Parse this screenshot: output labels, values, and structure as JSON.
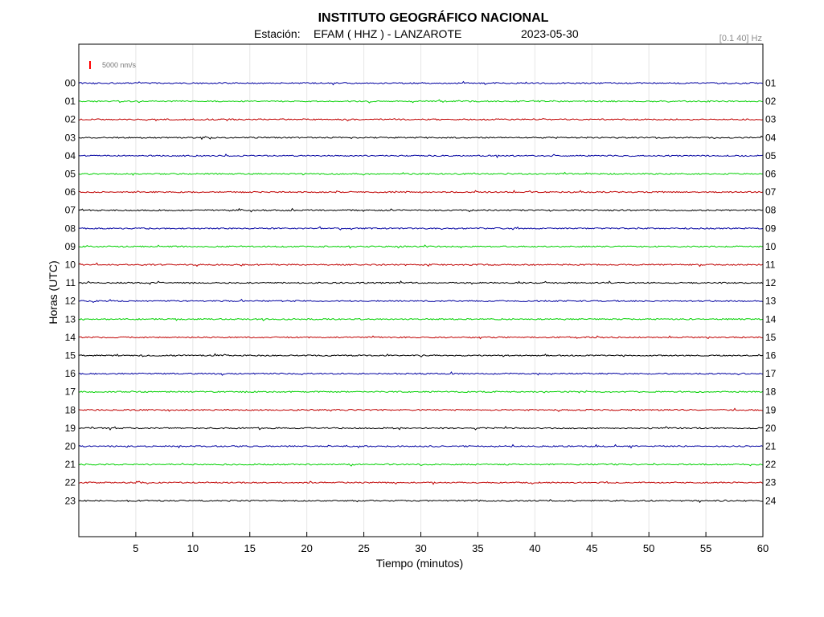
{
  "header": {
    "title": "INSTITUTO GEOGRÁFICO NACIONAL",
    "station_prefix": "Estación:",
    "station": "EFAM ( HHZ ) - LANZAROTE",
    "date": "2023-05-30",
    "filter": "[0.1 40] Hz"
  },
  "scale": {
    "label": "5000 nm/s",
    "color": "#ff0000"
  },
  "chart_data": {
    "type": "line",
    "xlabel": "Tiempo (minutos)",
    "ylabel": "Horas (UTC)",
    "xlim": [
      0,
      60
    ],
    "x_ticks": [
      "5",
      "10",
      "15",
      "20",
      "25",
      "30",
      "35",
      "40",
      "45",
      "50",
      "55",
      "60"
    ],
    "grid": true,
    "left_hour_labels": [
      "00",
      "01",
      "02",
      "03",
      "04",
      "05",
      "06",
      "07",
      "08",
      "09",
      "10",
      "11",
      "12",
      "13",
      "14",
      "15",
      "16",
      "17",
      "18",
      "19",
      "20",
      "21",
      "22",
      "23"
    ],
    "right_hour_labels": [
      "01",
      "02",
      "03",
      "04",
      "05",
      "06",
      "07",
      "08",
      "09",
      "10",
      "11",
      "12",
      "13",
      "14",
      "15",
      "16",
      "17",
      "18",
      "19",
      "20",
      "21",
      "22",
      "23",
      "24"
    ],
    "trace_colors": [
      "#0000a0",
      "#00d000",
      "#c00000",
      "#000000"
    ],
    "traces_per_hour": 1
  }
}
